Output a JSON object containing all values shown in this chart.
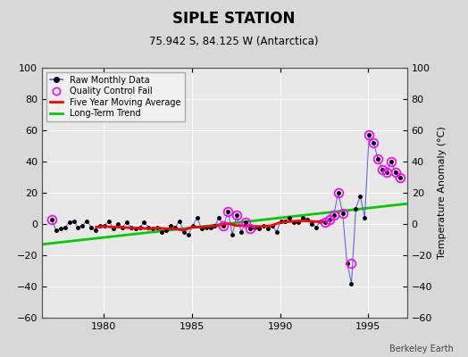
{
  "title": "SIPLE STATION",
  "subtitle": "75.942 S, 84.125 W (Antarctica)",
  "ylabel": "Temperature Anomaly (°C)",
  "credit": "Berkeley Earth",
  "background_color": "#d8d8d8",
  "plot_bg_color": "#e8e8e8",
  "xlim": [
    1976.5,
    1997.2
  ],
  "ylim": [
    -60,
    100
  ],
  "yticks": [
    -60,
    -40,
    -20,
    0,
    20,
    40,
    60,
    80,
    100
  ],
  "xticks": [
    1980,
    1985,
    1990,
    1995
  ],
  "grid_color": "#ffffff",
  "raw_x": [
    1977.04,
    1977.29,
    1977.54,
    1977.79,
    1978.04,
    1978.29,
    1978.54,
    1978.79,
    1979.04,
    1979.29,
    1979.54,
    1979.79,
    1980.04,
    1980.29,
    1980.54,
    1980.79,
    1981.04,
    1981.29,
    1981.54,
    1981.79,
    1982.04,
    1982.29,
    1982.54,
    1982.79,
    1983.04,
    1983.29,
    1983.54,
    1983.79,
    1984.04,
    1984.29,
    1984.54,
    1984.79,
    1985.04,
    1985.29,
    1985.54,
    1985.79,
    1986.04,
    1986.29,
    1986.54,
    1986.79,
    1987.04,
    1987.29,
    1987.54,
    1987.79,
    1988.04,
    1988.29,
    1988.54,
    1988.79,
    1989.04,
    1989.29,
    1989.54,
    1989.79,
    1990.04,
    1990.29,
    1990.54,
    1990.79,
    1991.04,
    1991.29,
    1991.54,
    1991.79,
    1992.04,
    1992.29,
    1992.54,
    1992.79,
    1993.04,
    1993.29,
    1993.54,
    1993.79,
    1994.04,
    1994.29,
    1994.54,
    1994.79,
    1995.04,
    1995.29,
    1995.54,
    1995.79,
    1996.04,
    1996.29,
    1996.54,
    1996.79
  ],
  "raw_y": [
    3.0,
    -4.0,
    -3.0,
    -2.0,
    1.0,
    2.0,
    -2.0,
    -1.0,
    2.0,
    -2.0,
    -4.0,
    -1.0,
    -1.0,
    2.0,
    -3.0,
    0.0,
    -2.0,
    1.0,
    -2.0,
    -3.0,
    -2.0,
    1.0,
    -2.0,
    -3.0,
    -2.0,
    -5.0,
    -4.0,
    -1.0,
    -2.0,
    2.0,
    -5.0,
    -7.0,
    -1.0,
    4.0,
    -3.0,
    -2.0,
    -2.0,
    -1.0,
    4.0,
    -1.0,
    8.0,
    -7.0,
    6.0,
    -5.0,
    1.0,
    -3.0,
    -2.0,
    -3.0,
    -1.0,
    -3.0,
    -1.0,
    -5.0,
    2.0,
    2.0,
    4.0,
    1.0,
    1.0,
    4.0,
    3.0,
    0.0,
    -2.0,
    2.0,
    1.0,
    3.0,
    6.0,
    20.0,
    7.0,
    -25.0,
    -38.0,
    10.0,
    18.0,
    4.0,
    57.0,
    52.0,
    42.0,
    35.0,
    33.0,
    40.0,
    33.0,
    30.0
  ],
  "qc_fail_x": [
    1977.04,
    1986.79,
    1987.04,
    1987.54,
    1988.04,
    1988.29,
    1992.54,
    1992.79,
    1993.04,
    1993.29,
    1993.54,
    1994.04,
    1995.04,
    1995.29,
    1995.54,
    1995.79,
    1996.04,
    1996.29,
    1996.54,
    1996.79
  ],
  "qc_fail_y": [
    3.0,
    -1.0,
    8.0,
    6.0,
    1.0,
    -3.0,
    1.0,
    3.0,
    6.0,
    20.0,
    7.0,
    -25.0,
    57.0,
    52.0,
    42.0,
    35.0,
    33.0,
    40.0,
    33.0,
    30.0
  ],
  "ma_x": [
    1979.5,
    1980.0,
    1980.5,
    1981.0,
    1981.5,
    1982.0,
    1982.5,
    1983.0,
    1983.5,
    1984.0,
    1984.5,
    1985.0,
    1985.5,
    1986.0,
    1986.5,
    1987.0,
    1987.5,
    1988.0,
    1988.5,
    1989.0,
    1989.5,
    1990.0,
    1990.5,
    1991.0,
    1991.5,
    1992.0,
    1992.5
  ],
  "ma_y": [
    -2.0,
    -1.5,
    -2.0,
    -2.0,
    -2.5,
    -2.5,
    -3.0,
    -2.5,
    -3.0,
    -3.0,
    -4.0,
    -2.0,
    -2.0,
    -1.5,
    -1.0,
    0.5,
    -1.0,
    -1.0,
    -1.5,
    -1.5,
    -1.0,
    1.0,
    1.5,
    2.0,
    2.0,
    1.5,
    1.5
  ],
  "trend_x": [
    1976.5,
    1997.2
  ],
  "trend_y": [
    -13.0,
    13.0
  ],
  "raw_line_color": "#5555ff",
  "raw_marker_color": "#000000",
  "qc_marker_color": "#ff00ff",
  "ma_color": "#ff0000",
  "trend_color": "#00cc00"
}
